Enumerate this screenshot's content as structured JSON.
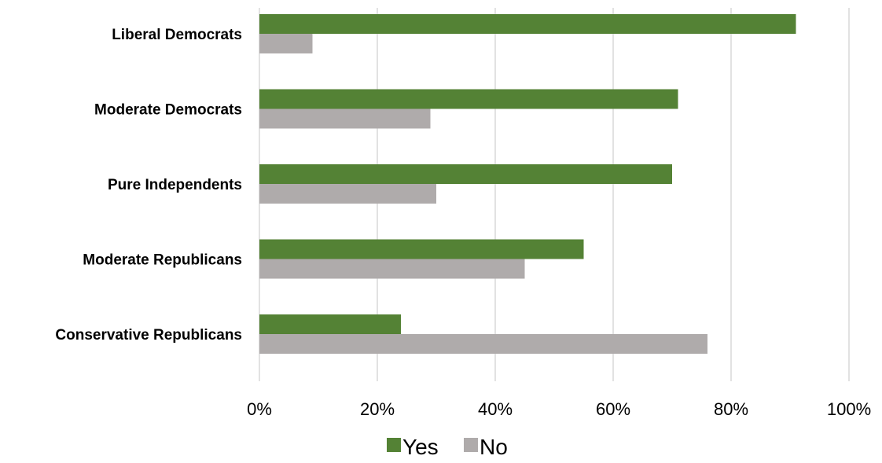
{
  "chart_data": {
    "type": "bar",
    "orientation": "horizontal",
    "categories": [
      "Liberal Democrats",
      "Moderate Democrats",
      "Pure Independents",
      "Moderate Republicans",
      "Conservative Republicans"
    ],
    "series": [
      {
        "name": "Yes",
        "color": "#548235",
        "values": [
          91,
          71,
          70,
          55,
          24
        ]
      },
      {
        "name": "No",
        "color": "#AFABAB",
        "values": [
          9,
          29,
          30,
          45,
          76
        ]
      }
    ],
    "x_ticks": [
      "0%",
      "20%",
      "40%",
      "60%",
      "80%",
      "100%"
    ],
    "xlim": [
      0,
      100
    ],
    "grid": true,
    "grid_color": "#D9D9D9",
    "legend_position": "bottom",
    "title": "",
    "xlabel": "",
    "ylabel": ""
  }
}
